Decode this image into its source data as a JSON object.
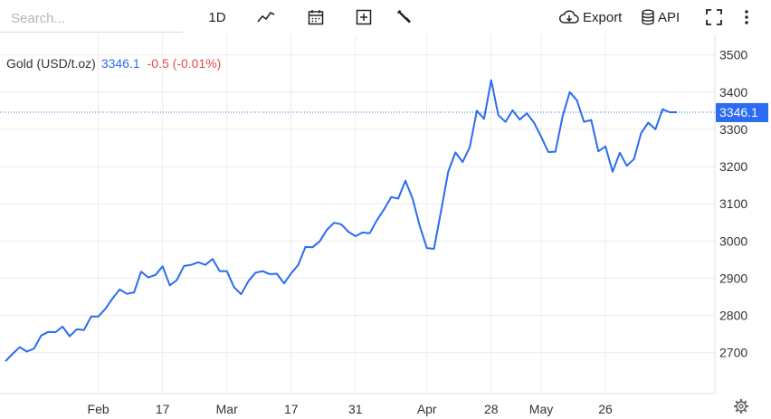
{
  "search": {
    "placeholder": "Search..."
  },
  "toolbar": {
    "range_label": "1D",
    "export_label": "Export",
    "api_label": "API"
  },
  "legend": {
    "name": "Gold (USD/t.oz)",
    "price": "3346.1",
    "change": "-0.5 (-0.01%)"
  },
  "colors": {
    "line": "#2b6cf0",
    "last_price_badge": "#2b6cf0",
    "negative": "#e04c4c",
    "grid": "#ececec"
  },
  "chart_data": {
    "type": "line",
    "title": "",
    "xlabel": "",
    "ylabel": "",
    "ylim": [
      2590,
      3555
    ],
    "y_axis_side": "right",
    "yticks": [
      2700,
      2800,
      2900,
      3000,
      3100,
      3200,
      3300,
      3400,
      3500
    ],
    "xtick_labels": [
      "Feb",
      "17",
      "Mar",
      "17",
      "31",
      "Apr",
      "28",
      "May",
      "26"
    ],
    "xtick_index": [
      13,
      22,
      31,
      40,
      49,
      59,
      68,
      75,
      84
    ],
    "last_value": 3346.1,
    "last_value_label": "3346.1",
    "grid": true,
    "series": [
      {
        "values": [
          2677,
          2697,
          2715,
          2703,
          2711,
          2746,
          2756,
          2755,
          2770,
          2744,
          2763,
          2761,
          2797,
          2797,
          2818,
          2846,
          2870,
          2858,
          2862,
          2918,
          2902,
          2909,
          2932,
          2881,
          2895,
          2933,
          2936,
          2943,
          2936,
          2952,
          2919,
          2919,
          2876,
          2857,
          2892,
          2915,
          2919,
          2911,
          2912,
          2886,
          2913,
          2936,
          2984,
          2983,
          2999,
          3030,
          3049,
          3045,
          3025,
          3013,
          3023,
          3021,
          3056,
          3085,
          3118,
          3114,
          3162,
          3114,
          3041,
          2981,
          2979,
          3082,
          3187,
          3238,
          3212,
          3252,
          3350,
          3328,
          3432,
          3338,
          3320,
          3351,
          3326,
          3343,
          3318,
          3280,
          3239,
          3240,
          3335,
          3400,
          3378,
          3320,
          3325,
          3241,
          3254,
          3186,
          3237,
          3202,
          3220,
          3290,
          3318,
          3300,
          3354,
          3346,
          3346
        ]
      }
    ]
  }
}
